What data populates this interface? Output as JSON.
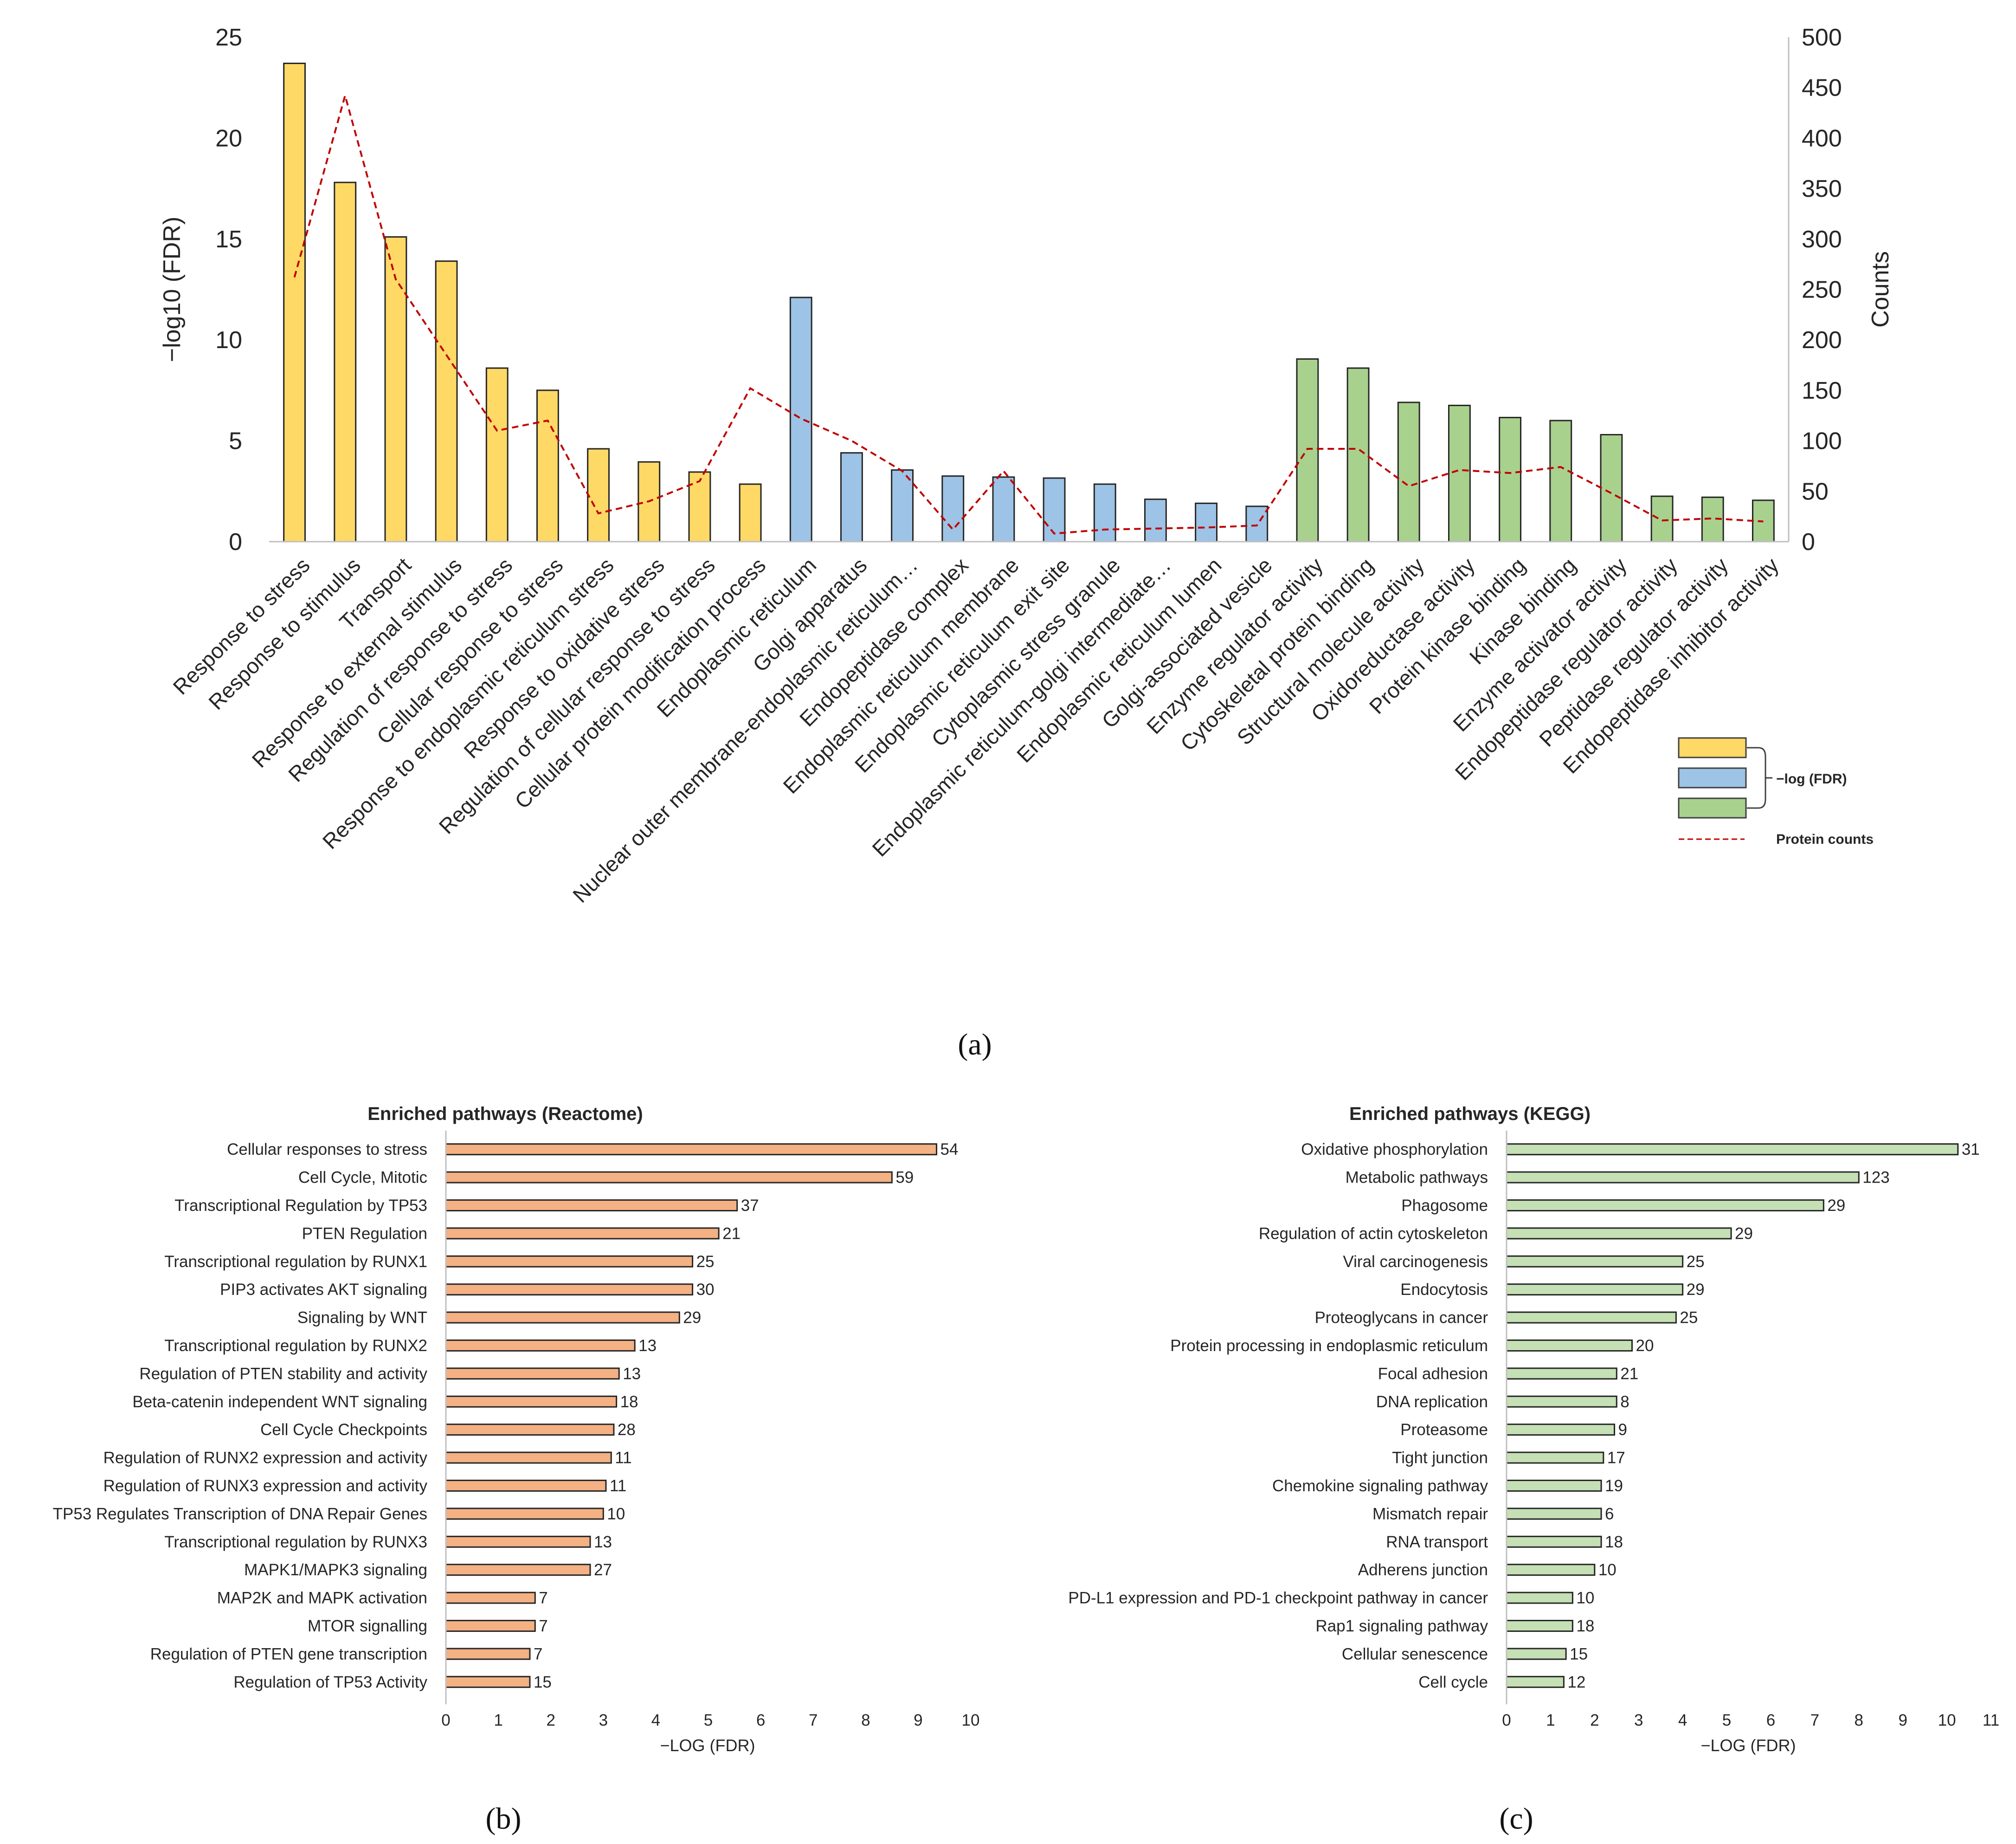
{
  "chart_data": [
    {
      "id": "a",
      "type": "bar+line",
      "panel_label": "(a)",
      "ylabel": "−log10 (FDR)",
      "y2label": "Counts",
      "ylim": [
        0,
        25
      ],
      "y2lim": [
        0,
        500
      ],
      "yticks": [
        "0",
        "5",
        "10",
        "15",
        "20",
        "25"
      ],
      "y2ticks": [
        "0",
        "50",
        "100",
        "150",
        "200",
        "250",
        "300",
        "350",
        "400",
        "450",
        "500"
      ],
      "categories": [
        "Response to stress",
        "Response to stimulus",
        "Transport",
        "Response to external stimulus",
        "Regulation of response to stress",
        "Cellular response to stress",
        "Response to endoplasmic reticulum stress",
        "Response to oxidative stress",
        "Regulation of cellular response to stress",
        "Cellular protein modification process",
        "Endoplasmic reticulum",
        "Golgi apparatus",
        "Nuclear outer membrane-endoplasmic reticulum…",
        "Endopeptidase complex",
        "Endoplasmic reticulum membrane",
        "Endoplasmic reticulum exit site",
        "Cytoplasmic stress granule",
        "Endoplasmic reticulum-golgi intermediate…",
        "Endoplasmic reticulum lumen",
        "Golgi-associated vesicle",
        "Enzyme regulator activity",
        "Cytoskeletal protein binding",
        "Structural molecule activity",
        "Oxidoreductase activity",
        "Protein kinase binding",
        "Kinase binding",
        "Enzyme activator activity",
        "Endopeptidase regulator activity",
        "Peptidase regulator activity",
        "Endopeptidase inhibitor activity"
      ],
      "groups": [
        0,
        0,
        0,
        0,
        0,
        0,
        0,
        0,
        0,
        0,
        1,
        1,
        1,
        1,
        1,
        1,
        1,
        1,
        1,
        1,
        2,
        2,
        2,
        2,
        2,
        2,
        2,
        2,
        2,
        2
      ],
      "group_colors": [
        "#FFD966",
        "#9DC3E6",
        "#A9D18E"
      ],
      "neg_log_fdr": [
        23.7,
        17.8,
        15.1,
        13.9,
        8.6,
        7.5,
        4.6,
        3.95,
        3.45,
        2.85,
        12.1,
        4.4,
        3.55,
        3.25,
        3.2,
        3.15,
        2.85,
        2.1,
        1.9,
        1.75,
        9.05,
        8.6,
        6.9,
        6.75,
        6.15,
        6.0,
        5.3,
        2.25,
        2.2,
        2.05
      ],
      "protein_counts": [
        262,
        442,
        260,
        185,
        110,
        120,
        28,
        40,
        60,
        152,
        122,
        100,
        70,
        12,
        70,
        8,
        12,
        13,
        14,
        16,
        92,
        92,
        55,
        71,
        68,
        74,
        48,
        21,
        23,
        20
      ],
      "line_color": "#C00000",
      "legend": {
        "bar_label": "−log (FDR)",
        "line_label": "Protein counts"
      }
    },
    {
      "id": "b",
      "type": "hbar",
      "panel_label": "(b)",
      "title": "Enriched pathways (Reactome)",
      "xlabel": "−LOG (FDR)",
      "xlim": [
        0,
        10
      ],
      "xticks": [
        "0",
        "1",
        "2",
        "3",
        "4",
        "5",
        "6",
        "7",
        "8",
        "9",
        "10"
      ],
      "bar_color": "#F4B183",
      "categories": [
        "Cellular responses to stress",
        "Cell Cycle, Mitotic",
        "Transcriptional Regulation by TP53",
        "PTEN Regulation",
        "Transcriptional regulation by RUNX1",
        "PIP3 activates AKT signaling",
        "Signaling by WNT",
        "Transcriptional regulation by RUNX2",
        "Regulation of PTEN stability and activity",
        "Beta-catenin independent WNT signaling",
        "Cell Cycle Checkpoints",
        "Regulation of RUNX2 expression and activity",
        "Regulation of RUNX3 expression and activity",
        "TP53 Regulates Transcription of DNA Repair Genes",
        "Transcriptional regulation by RUNX3",
        "MAPK1/MAPK3 signaling",
        "MAP2K and MAPK activation",
        "MTOR signalling",
        "Regulation of PTEN gene transcription",
        "Regulation of TP53 Activity"
      ],
      "values": [
        9.35,
        8.5,
        5.55,
        5.2,
        4.7,
        4.7,
        4.45,
        3.6,
        3.3,
        3.25,
        3.2,
        3.15,
        3.05,
        3.0,
        2.75,
        2.75,
        1.7,
        1.7,
        1.6,
        1.6
      ],
      "labels": [
        "54",
        "59",
        "37",
        "21",
        "25",
        "30",
        "29",
        "13",
        "13",
        "18",
        "28",
        "11",
        "11",
        "10",
        "13",
        "27",
        "7",
        "7",
        "7",
        "15"
      ]
    },
    {
      "id": "c",
      "type": "hbar",
      "panel_label": "(c)",
      "title": "Enriched pathways (KEGG)",
      "xlabel": "−LOG (FDR)",
      "xlim": [
        0,
        11
      ],
      "xticks": [
        "0",
        "1",
        "2",
        "3",
        "4",
        "5",
        "6",
        "7",
        "8",
        "9",
        "10",
        "11"
      ],
      "bar_color": "#C5E0B4",
      "categories": [
        "Oxidative phosphorylation",
        "Metabolic pathways",
        "Phagosome",
        "Regulation of actin cytoskeleton",
        "Viral carcinogenesis",
        "Endocytosis",
        "Proteoglycans in cancer",
        "Protein processing in endoplasmic reticulum",
        "Focal adhesion",
        "DNA replication",
        "Proteasome",
        "Tight junction",
        "Chemokine signaling pathway",
        "Mismatch repair",
        "RNA transport",
        "Adherens junction",
        "PD-L1 expression and PD-1 checkpoint pathway in cancer",
        "Rap1 signaling pathway",
        "Cellular senescence",
        "Cell cycle"
      ],
      "values": [
        10.25,
        8.0,
        7.2,
        5.1,
        4.0,
        4.0,
        3.85,
        2.85,
        2.5,
        2.5,
        2.45,
        2.2,
        2.15,
        2.15,
        2.15,
        2.0,
        1.5,
        1.5,
        1.35,
        1.3
      ],
      "labels": [
        "31",
        "123",
        "29",
        "29",
        "25",
        "29",
        "25",
        "20",
        "21",
        "8",
        "9",
        "17",
        "19",
        "6",
        "18",
        "10",
        "10",
        "18",
        "15",
        "12"
      ]
    }
  ]
}
